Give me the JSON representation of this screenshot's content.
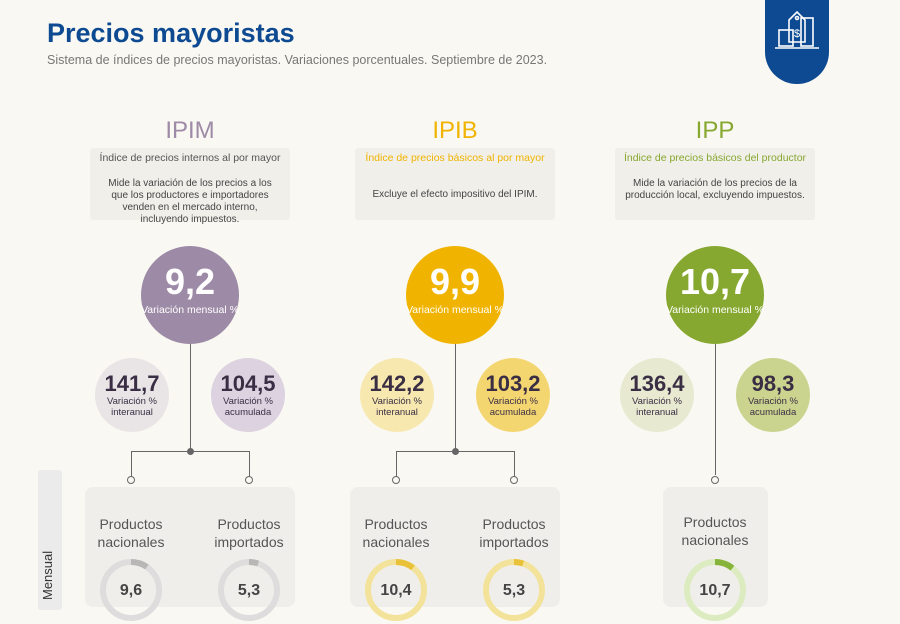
{
  "header": {
    "title": "Precios mayoristas",
    "subtitle": "Sistema de índices de precios mayoristas. Variaciones porcentuales. Septiembre de 2023.",
    "icon": "price-tag-box-icon"
  },
  "side_label": "Mensual",
  "indices": [
    {
      "code": "IPIM",
      "name": "Índice de precios internos al por mayor",
      "desc": "Mide la variación de los precios a los que los productores e importadores venden en el mercado interno, incluyendo impuestos.",
      "color": "#9d8aa6",
      "mensual": {
        "value": "9,2",
        "label": "Variación mensual %"
      },
      "interanual": {
        "value": "141,7",
        "label": "Variación % interanual"
      },
      "acumulada": {
        "value": "104,5",
        "label": "Variación % acumulada"
      },
      "products": [
        {
          "label": "Productos nacionales",
          "value": "9,6",
          "pct": 9.6
        },
        {
          "label": "Productos importados",
          "value": "5,3",
          "pct": 5.3
        }
      ]
    },
    {
      "code": "IPIB",
      "name": "Índice de precios básicos al por mayor",
      "desc": "Excluye el efecto impositivo del IPIM.",
      "color": "#f0b400",
      "mensual": {
        "value": "9,9",
        "label": "Variación mensual %"
      },
      "interanual": {
        "value": "142,2",
        "label": "Variación % interanual"
      },
      "acumulada": {
        "value": "103,2",
        "label": "Variación % acumulada"
      },
      "products": [
        {
          "label": "Productos nacionales",
          "value": "10,4",
          "pct": 10.4
        },
        {
          "label": "Productos importados",
          "value": "5,3",
          "pct": 5.3
        }
      ]
    },
    {
      "code": "IPP",
      "name": "Índice de precios básicos del productor",
      "desc": "Mide la variación de los precios de la producción local, excluyendo impuestos.",
      "color": "#86a830",
      "mensual": {
        "value": "10,7",
        "label": "Variación mensual %"
      },
      "interanual": {
        "value": "136,4",
        "label": "Variación % interanual"
      },
      "acumulada": {
        "value": "98,3",
        "label": "Variación % acumulada"
      },
      "products": [
        {
          "label": "Productos nacionales",
          "value": "10,7",
          "pct": 10.7
        }
      ]
    }
  ]
}
